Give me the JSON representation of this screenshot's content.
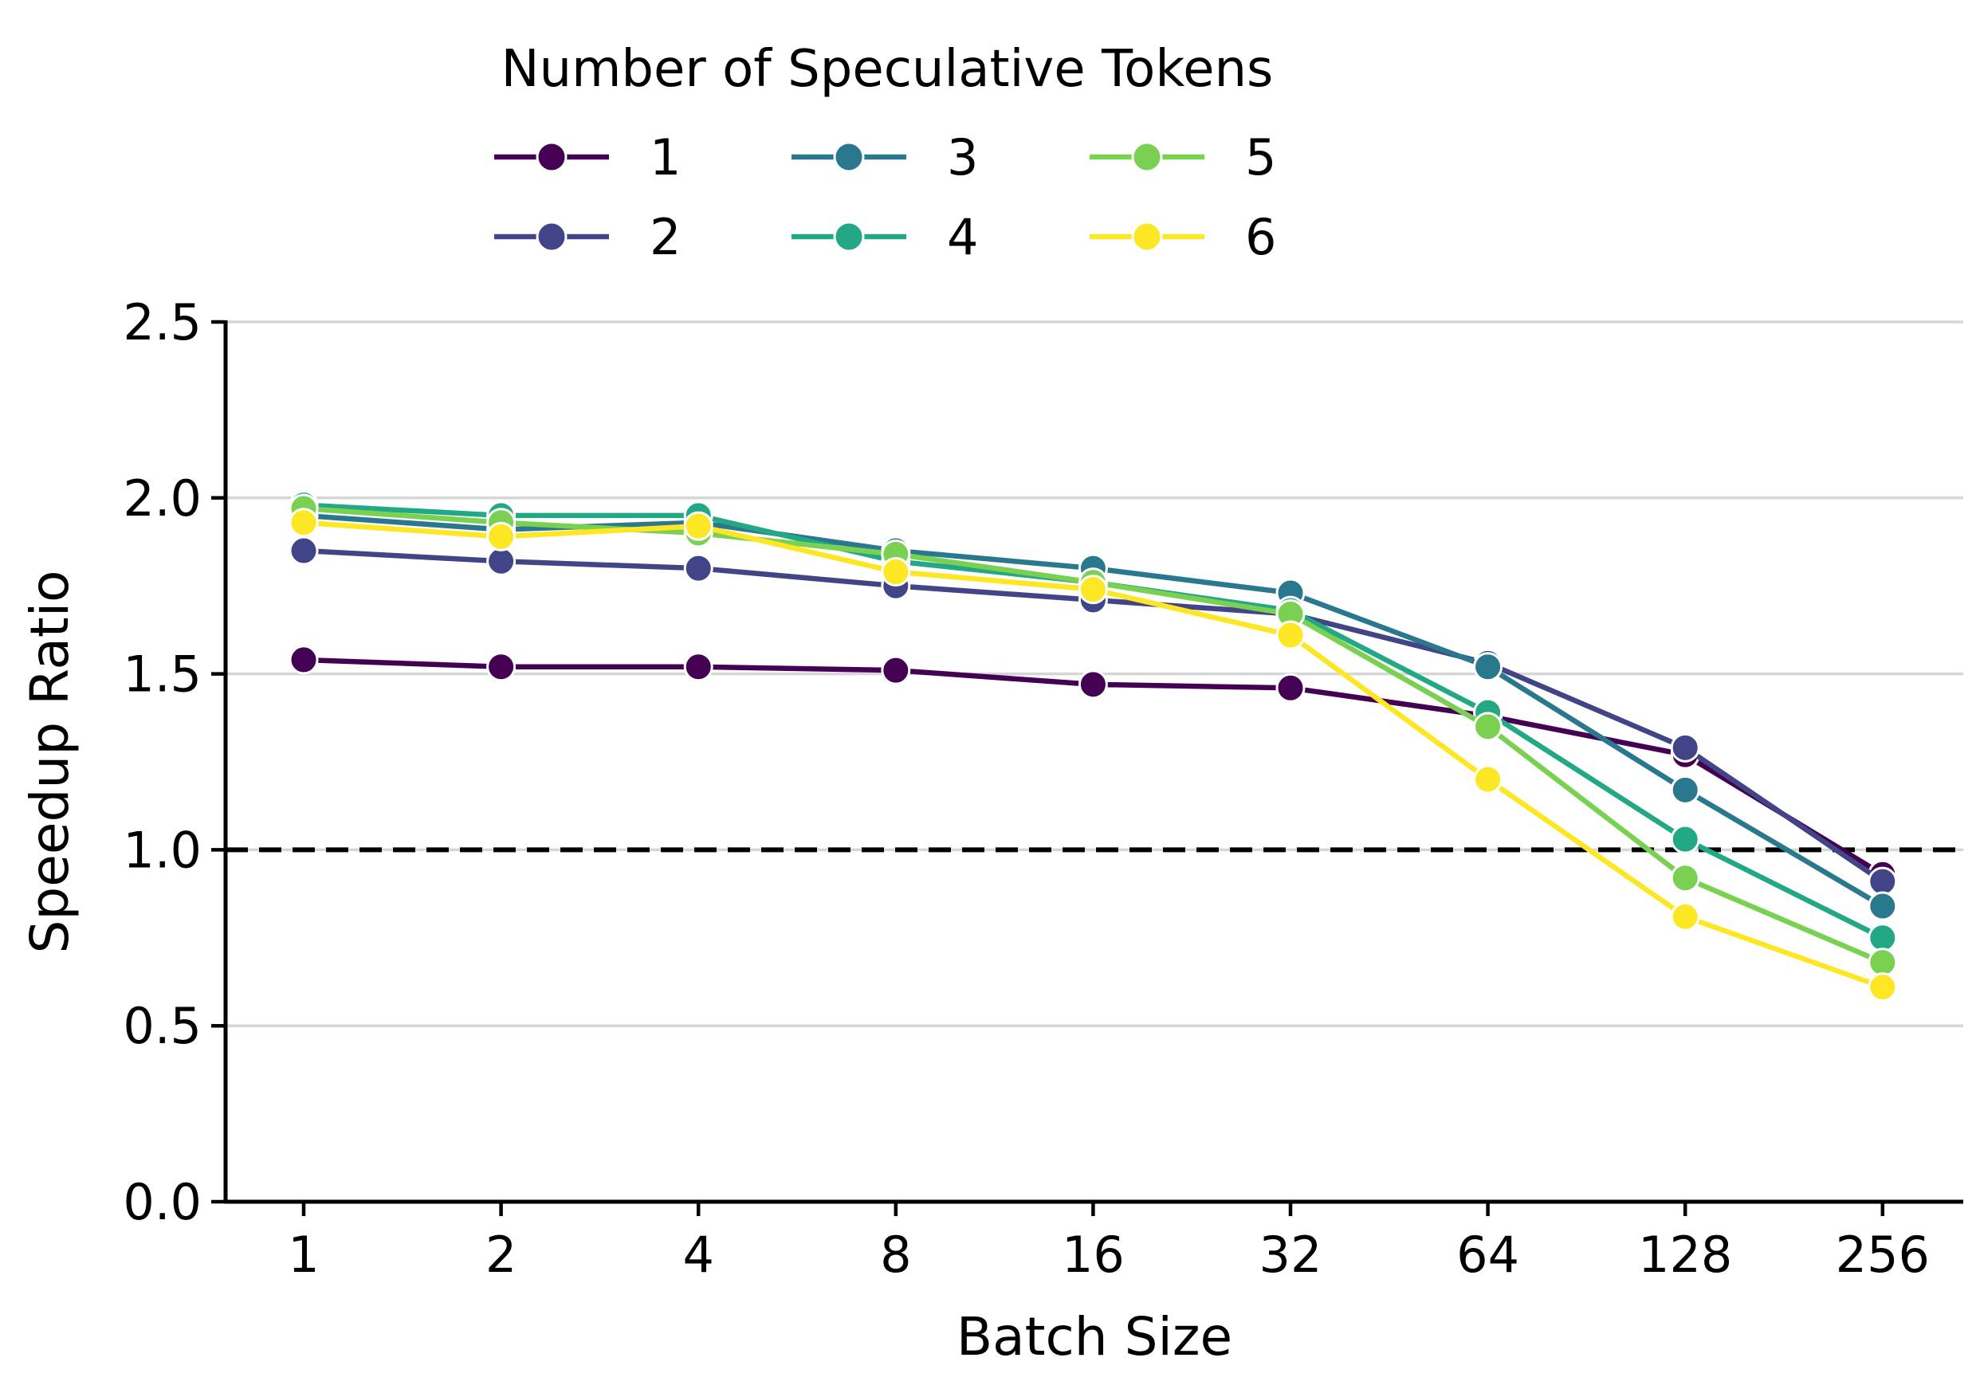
{
  "chart_data": {
    "type": "line",
    "xlabel": "Batch Size",
    "ylabel": "Speedup Ratio",
    "categories": [
      "1",
      "2",
      "4",
      "8",
      "16",
      "32",
      "64",
      "128",
      "256"
    ],
    "x_scale": "log2 (categorical ticks)",
    "ylim": [
      0,
      2.5
    ],
    "yticks": [
      "0.0",
      "0.5",
      "1.0",
      "1.5",
      "2.0",
      "2.5"
    ],
    "grid": "horizontal",
    "reference_line": {
      "y": 1.0,
      "style": "dashed",
      "color": "#000000"
    },
    "legend": {
      "title": "Number of Speculative Tokens",
      "placement": "top"
    },
    "series": [
      {
        "name": "1",
        "color": "#440154",
        "values": [
          1.54,
          1.52,
          1.52,
          1.51,
          1.47,
          1.46,
          1.38,
          1.27,
          0.93
        ]
      },
      {
        "name": "2",
        "color": "#414487",
        "values": [
          1.85,
          1.82,
          1.8,
          1.75,
          1.71,
          1.67,
          1.53,
          1.29,
          0.91
        ]
      },
      {
        "name": "3",
        "color": "#2a788e",
        "values": [
          1.95,
          1.91,
          1.93,
          1.85,
          1.8,
          1.73,
          1.52,
          1.17,
          0.84
        ]
      },
      {
        "name": "4",
        "color": "#22a884",
        "values": [
          1.98,
          1.95,
          1.95,
          1.82,
          1.76,
          1.68,
          1.39,
          1.03,
          0.75
        ]
      },
      {
        "name": "5",
        "color": "#7ad151",
        "values": [
          1.97,
          1.93,
          1.9,
          1.84,
          1.76,
          1.67,
          1.35,
          0.92,
          0.68
        ]
      },
      {
        "name": "6",
        "color": "#fde725",
        "values": [
          1.93,
          1.89,
          1.92,
          1.79,
          1.74,
          1.61,
          1.2,
          0.81,
          0.61
        ]
      }
    ]
  }
}
